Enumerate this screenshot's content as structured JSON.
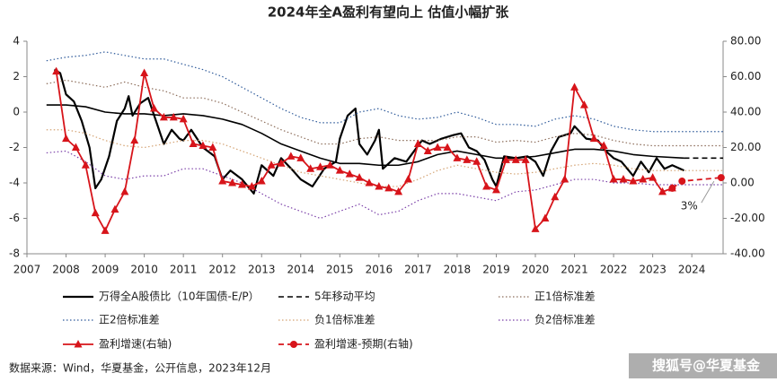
{
  "chart_data": {
    "type": "line",
    "title": "2024年全A盈利有望向上 估值小幅扩张",
    "xlim": [
      2007,
      2024.8
    ],
    "xticks": [
      2007,
      2008,
      2009,
      2010,
      2011,
      2012,
      2013,
      2014,
      2015,
      2016,
      2017,
      2018,
      2019,
      2020,
      2021,
      2022,
      2023,
      2024
    ],
    "ylim": [
      -8,
      4
    ],
    "yticks": [
      -8,
      -6,
      -4,
      -2,
      0,
      2,
      4
    ],
    "y2lim": [
      -40,
      80
    ],
    "y2ticks": [
      {
        "value": -40,
        "label": "-40.00"
      },
      {
        "value": -20,
        "label": "-20.00"
      },
      {
        "value": 0,
        "label": "0.00"
      },
      {
        "value": 20,
        "label": "20.00"
      },
      {
        "value": 40,
        "label": "40.00"
      },
      {
        "value": 60,
        "label": "60.00"
      },
      {
        "value": 80,
        "label": "80.00"
      }
    ],
    "series": [
      {
        "name": "万得全A股债比（10年国债-E/P）",
        "color": "#000000",
        "line_style": "solid",
        "width": 2.2,
        "x": [
          2007.7,
          2007.85,
          2008.0,
          2008.2,
          2008.4,
          2008.6,
          2008.75,
          2008.9,
          2009.1,
          2009.3,
          2009.5,
          2009.6,
          2009.7,
          2009.9,
          2010.1,
          2010.3,
          2010.5,
          2010.7,
          2010.9,
          2011.0,
          2011.2,
          2011.5,
          2011.8,
          2012.0,
          2012.2,
          2012.5,
          2012.8,
          2013.0,
          2013.3,
          2013.5,
          2013.8,
          2014.0,
          2014.3,
          2014.6,
          2014.9,
          2015.0,
          2015.2,
          2015.4,
          2015.5,
          2015.7,
          2015.9,
          2016.0,
          2016.1,
          2016.4,
          2016.7,
          2016.9,
          2017.1,
          2017.3,
          2017.6,
          2017.9,
          2018.1,
          2018.3,
          2018.5,
          2018.7,
          2018.9,
          2019.0,
          2019.2,
          2019.5,
          2019.8,
          2020.0,
          2020.2,
          2020.4,
          2020.6,
          2020.9,
          2021.0,
          2021.3,
          2021.6,
          2021.8,
          2022.0,
          2022.2,
          2022.5,
          2022.7,
          2022.9,
          2023.1,
          2023.3,
          2023.5,
          2023.8
        ],
        "values": [
          2.4,
          2.2,
          1.0,
          0.6,
          -0.5,
          -2.0,
          -4.3,
          -3.8,
          -2.5,
          -0.5,
          0.2,
          0.9,
          -0.2,
          0.5,
          0.8,
          -0.5,
          -1.8,
          -1.0,
          -1.5,
          -1.6,
          -1.0,
          -2.0,
          -2.5,
          -3.8,
          -3.3,
          -3.8,
          -4.6,
          -3.0,
          -3.6,
          -2.6,
          -3.3,
          -3.8,
          -4.2,
          -3.2,
          -2.8,
          -1.5,
          -0.2,
          0.2,
          -1.8,
          -2.4,
          -1.6,
          -1.0,
          -3.2,
          -2.6,
          -2.8,
          -2.2,
          -1.6,
          -1.8,
          -1.5,
          -1.3,
          -1.2,
          -2.0,
          -2.2,
          -2.7,
          -3.8,
          -4.2,
          -2.5,
          -2.6,
          -2.5,
          -2.8,
          -3.6,
          -2.2,
          -1.4,
          -1.2,
          -0.8,
          -1.5,
          -1.6,
          -2.2,
          -2.6,
          -2.8,
          -3.6,
          -2.8,
          -3.4,
          -2.6,
          -3.2,
          -3.0,
          -3.3
        ]
      },
      {
        "name": "5年移动平均",
        "color": "#000000",
        "line_style": "solid",
        "dash_from": 2023.8,
        "width": 1.6,
        "x": [
          2007.5,
          2008,
          2008.5,
          2009,
          2009.5,
          2010,
          2010.5,
          2011,
          2011.5,
          2012,
          2012.5,
          2013,
          2013.5,
          2014,
          2014.5,
          2015,
          2015.5,
          2016,
          2016.5,
          2017,
          2017.5,
          2018,
          2018.5,
          2019,
          2019.5,
          2020,
          2020.5,
          2021,
          2021.5,
          2022,
          2022.5,
          2023,
          2023.8,
          2024.8
        ],
        "values": [
          0.4,
          0.4,
          0.3,
          0.0,
          -0.1,
          -0.1,
          -0.2,
          -0.1,
          -0.2,
          -0.4,
          -0.7,
          -1.2,
          -1.8,
          -2.2,
          -2.6,
          -2.9,
          -2.9,
          -3.0,
          -3.0,
          -2.8,
          -2.4,
          -2.2,
          -2.4,
          -2.6,
          -2.6,
          -2.5,
          -2.3,
          -2.1,
          -2.1,
          -2.2,
          -2.4,
          -2.5,
          -2.6,
          -2.6
        ]
      },
      {
        "name": "正1倍标准差",
        "color": "#8c6d5a",
        "line_style": "dotted",
        "width": 1.2,
        "x": [
          2007.5,
          2008,
          2008.5,
          2009,
          2009.5,
          2010,
          2010.5,
          2011,
          2011.5,
          2012,
          2012.5,
          2013,
          2013.5,
          2014,
          2014.5,
          2015,
          2015.5,
          2016,
          2016.5,
          2017,
          2017.5,
          2018,
          2018.5,
          2019,
          2019.5,
          2020,
          2020.5,
          2021,
          2021.5,
          2022,
          2022.5,
          2023,
          2024.8
        ],
        "values": [
          1.6,
          1.8,
          1.6,
          1.4,
          1.7,
          1.4,
          1.2,
          0.8,
          0.8,
          0.5,
          0.0,
          -0.5,
          -1.0,
          -1.4,
          -1.8,
          -1.8,
          -1.5,
          -1.4,
          -1.6,
          -1.6,
          -1.6,
          -1.4,
          -1.4,
          -1.7,
          -1.6,
          -1.7,
          -1.4,
          -1.2,
          -1.3,
          -1.6,
          -1.8,
          -1.9,
          -1.9
        ]
      },
      {
        "name": "正2倍标准差",
        "color": "#2e5a9a",
        "line_style": "dotted",
        "width": 1.2,
        "x": [
          2007.5,
          2008,
          2008.5,
          2009,
          2009.5,
          2010,
          2010.5,
          2011,
          2011.5,
          2012,
          2012.5,
          2013,
          2013.5,
          2014,
          2014.5,
          2015,
          2015.5,
          2016,
          2016.5,
          2017,
          2017.5,
          2018,
          2018.5,
          2019,
          2019.5,
          2020,
          2020.5,
          2021,
          2021.5,
          2022,
          2022.5,
          2023,
          2024.8
        ],
        "values": [
          2.9,
          3.1,
          3.2,
          3.4,
          3.2,
          3.0,
          3.0,
          2.7,
          2.4,
          2.0,
          1.4,
          0.8,
          0.2,
          -0.3,
          -0.6,
          -0.6,
          0.0,
          0.2,
          -0.2,
          -0.4,
          -0.3,
          0.0,
          -0.3,
          -0.7,
          -0.7,
          -0.8,
          -0.4,
          -0.2,
          -0.4,
          -0.8,
          -1.0,
          -1.1,
          -1.1
        ]
      },
      {
        "name": "负1倍标准差",
        "color": "#d4a373",
        "line_style": "dotted",
        "width": 1.2,
        "x": [
          2007.5,
          2008,
          2008.5,
          2009,
          2009.5,
          2010,
          2010.5,
          2011,
          2011.5,
          2012,
          2012.5,
          2013,
          2013.5,
          2014,
          2014.5,
          2015,
          2015.5,
          2016,
          2016.5,
          2017,
          2017.5,
          2018,
          2018.5,
          2019,
          2019.5,
          2020,
          2020.5,
          2021,
          2021.5,
          2022,
          2022.5,
          2023,
          2024.8
        ],
        "values": [
          -1.0,
          -1.0,
          -1.2,
          -1.6,
          -1.9,
          -2.0,
          -1.8,
          -1.6,
          -1.6,
          -1.8,
          -2.2,
          -2.6,
          -3.0,
          -3.4,
          -3.6,
          -3.8,
          -4.0,
          -4.2,
          -4.2,
          -3.8,
          -3.3,
          -3.0,
          -3.2,
          -3.4,
          -3.5,
          -3.4,
          -3.2,
          -3.0,
          -2.9,
          -3.0,
          -3.2,
          -3.3,
          -3.3
        ]
      },
      {
        "name": "负2倍标准差",
        "color": "#7a3fa8",
        "line_style": "dotted",
        "width": 1.2,
        "x": [
          2007.5,
          2008,
          2008.5,
          2009,
          2009.5,
          2010,
          2010.5,
          2011,
          2011.5,
          2012,
          2012.5,
          2013,
          2013.5,
          2014,
          2014.5,
          2015,
          2015.5,
          2016,
          2016.5,
          2017,
          2017.5,
          2018,
          2018.5,
          2019,
          2019.5,
          2020,
          2020.5,
          2021,
          2021.5,
          2022,
          2022.5,
          2023,
          2024.8
        ],
        "values": [
          -2.3,
          -2.2,
          -2.8,
          -3.6,
          -3.8,
          -3.6,
          -3.6,
          -3.2,
          -3.2,
          -3.6,
          -4.0,
          -4.6,
          -5.2,
          -5.6,
          -6.0,
          -5.6,
          -5.2,
          -5.8,
          -5.6,
          -5.0,
          -4.6,
          -4.6,
          -4.8,
          -5.0,
          -4.5,
          -4.4,
          -4.1,
          -3.8,
          -3.8,
          -4.0,
          -4.0,
          -4.1,
          -4.1
        ]
      },
      {
        "name": "盈利增速(右轴)",
        "color": "#d7141a",
        "line_style": "solid",
        "marker": "triangle",
        "axis": "y2",
        "width": 1.8,
        "x": [
          2007.75,
          2008.0,
          2008.25,
          2008.5,
          2008.75,
          2009.0,
          2009.25,
          2009.5,
          2009.75,
          2010.0,
          2010.25,
          2010.5,
          2010.75,
          2011.0,
          2011.25,
          2011.5,
          2011.75,
          2012.0,
          2012.25,
          2012.5,
          2012.75,
          2013.0,
          2013.25,
          2013.5,
          2013.75,
          2014.0,
          2014.25,
          2014.5,
          2014.75,
          2015.0,
          2015.25,
          2015.5,
          2015.75,
          2016.0,
          2016.25,
          2016.5,
          2016.75,
          2017.0,
          2017.25,
          2017.5,
          2017.75,
          2018.0,
          2018.25,
          2018.5,
          2018.75,
          2019.0,
          2019.25,
          2019.5,
          2019.75,
          2020.0,
          2020.25,
          2020.5,
          2020.75,
          2021.0,
          2021.25,
          2021.5,
          2021.75,
          2022.0,
          2022.25,
          2022.5,
          2022.75,
          2023.0,
          2023.25,
          2023.5
        ],
        "values": [
          63,
          25,
          20,
          10,
          -17,
          -27,
          -15,
          -5,
          24,
          62,
          42,
          37,
          37,
          36,
          22,
          21,
          20,
          1,
          0,
          -1,
          -2,
          1,
          10,
          11,
          15,
          14,
          8,
          9,
          10,
          7,
          5,
          3,
          0,
          -2,
          -3,
          -5,
          2,
          22,
          18,
          20,
          20,
          14,
          13,
          12,
          -2,
          -4,
          13,
          13,
          13,
          -26,
          -20,
          -8,
          2,
          54,
          44,
          25,
          21,
          2,
          2,
          1,
          2,
          3,
          -5,
          -3
        ]
      },
      {
        "name": "盈利增速-预期(右轴)",
        "color": "#d7141a",
        "line_style": "dashed",
        "marker": "circle",
        "axis": "y2",
        "width": 1.8,
        "x": [
          2023.5,
          2023.75,
          2024.75
        ],
        "values": [
          -3,
          1,
          3
        ]
      }
    ],
    "annotations": [
      {
        "text": "3%",
        "x": 2024.75,
        "y": 3,
        "axis": "y2"
      }
    ],
    "source": "数据来源：Wind，华夏基金，公开信息，2023年12月",
    "watermark": "搜狐号@华夏基金"
  }
}
